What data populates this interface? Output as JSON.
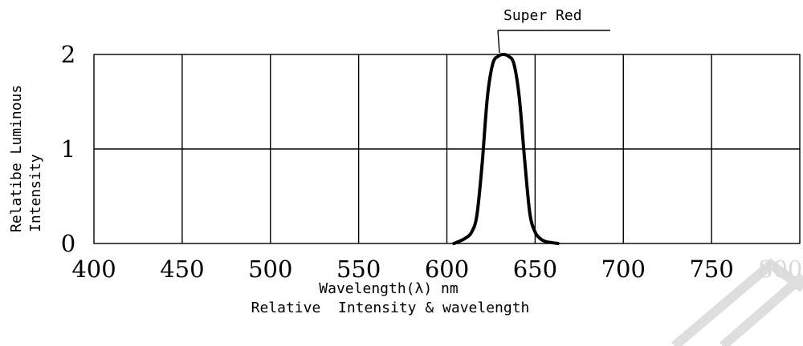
{
  "chart_data": {
    "type": "line",
    "title": "Relative  Intensity & wavelength",
    "xlabel": "Wavelength(λ) nm",
    "ylabel_line1": "Relatibe  Luminous",
    "ylabel_line2": "Intensity",
    "xlim": [
      400,
      800
    ],
    "ylim": [
      0,
      2
    ],
    "x_ticks": [
      "400",
      "450",
      "500",
      "550",
      "600",
      "650",
      "700",
      "750",
      "800"
    ],
    "y_ticks": [
      "0",
      "1",
      "2"
    ],
    "grid": true,
    "series": [
      {
        "name": "Super Red",
        "x": [
          604,
          610,
          614,
          617,
          620,
          623,
          626,
          629,
          632,
          635,
          638,
          641,
          644,
          647,
          650,
          653,
          656,
          659,
          663
        ],
        "y": [
          0.0,
          0.05,
          0.12,
          0.3,
          0.85,
          1.55,
          1.9,
          1.98,
          2.0,
          1.98,
          1.9,
          1.55,
          0.9,
          0.32,
          0.12,
          0.05,
          0.02,
          0.01,
          0.0
        ]
      }
    ],
    "colors": {
      "line": "#000000",
      "grid": "#000000",
      "faded_tick": "#d9d9d9",
      "watermark": "#dedede"
    }
  }
}
